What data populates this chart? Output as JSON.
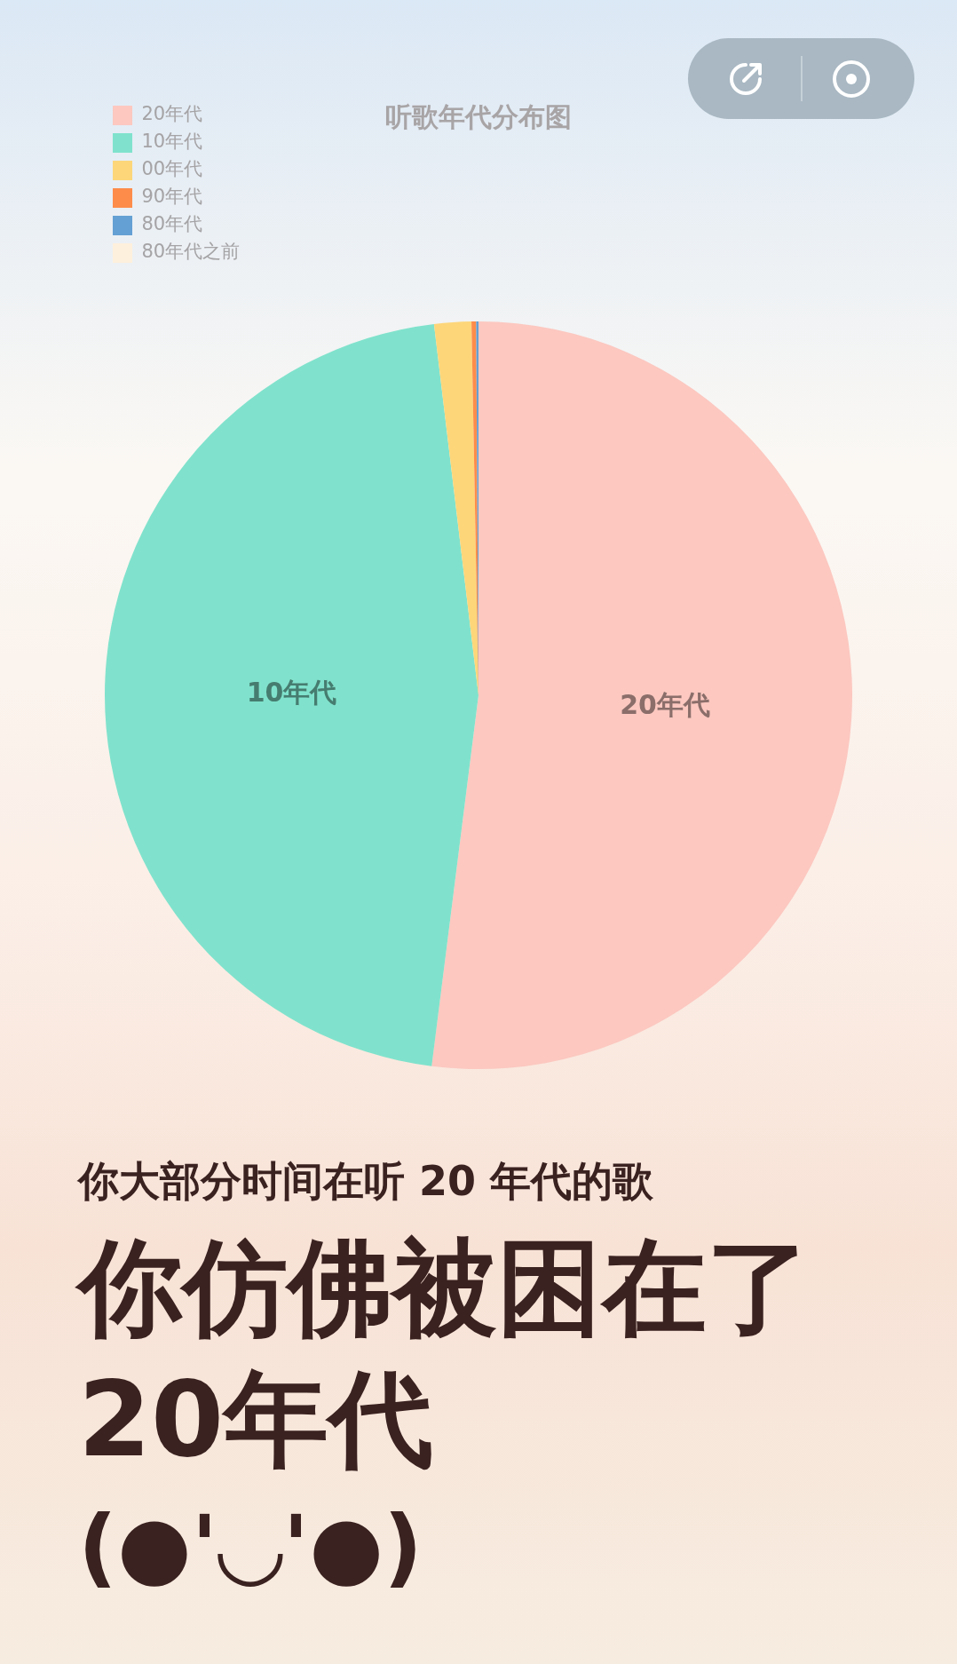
{
  "chart_data": {
    "type": "pie",
    "title": "听歌年代分布图",
    "categories": [
      "20年代",
      "10年代",
      "00年代",
      "90年代",
      "80年代",
      "80年代之前"
    ],
    "values": [
      52.0,
      46.1,
      1.6,
      0.2,
      0.1,
      null
    ],
    "colors": [
      "#fcc8c0",
      "#80e2cc",
      "#fdd67a",
      "#fd8c4a",
      "#64a0d3",
      "#fdf0dc"
    ],
    "legend": "top left",
    "annotations": [
      "你大部分时间在听 20 年代的歌",
      "你仿佛被困在了",
      "20年代",
      "(●'◡'●)"
    ]
  }
}
